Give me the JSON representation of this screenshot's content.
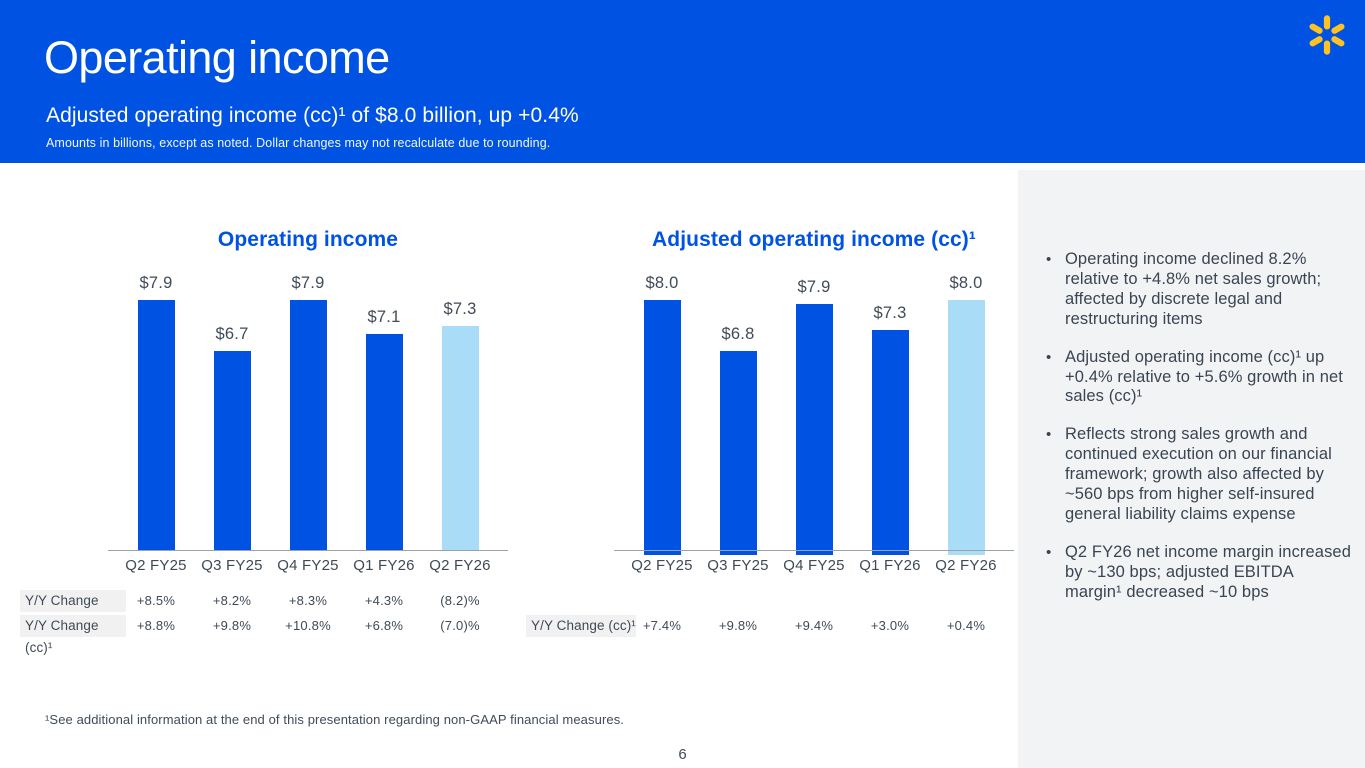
{
  "header": {
    "title": "Operating income",
    "subtitle": "Adjusted operating income (cc)¹ of $8.0 billion, up +0.4%",
    "note": "Amounts in billions, except as noted.  Dollar changes may not recalculate due to rounding.",
    "logo": "walmart-spark-icon"
  },
  "colors": {
    "brand_blue": "#0053E2",
    "light_blue": "#A9DDF7",
    "spark_yellow": "#FFC220",
    "text_dark": "#3A4553",
    "sidebar_bg": "#F2F3F4"
  },
  "chart_data": [
    {
      "type": "bar",
      "title": "Operating income",
      "categories": [
        "Q2 FY25",
        "Q3 FY25",
        "Q4 FY25",
        "Q1 FY26",
        "Q2 FY26"
      ],
      "values": [
        7.9,
        6.7,
        7.9,
        7.1,
        7.3
      ],
      "value_labels": [
        "$7.9",
        "$6.7",
        "$7.9",
        "$7.1",
        "$7.3"
      ],
      "bar_colors": [
        "#0053E2",
        "#0053E2",
        "#0053E2",
        "#0053E2",
        "#A9DDF7"
      ],
      "ylim": [
        2.0,
        8.5
      ],
      "grid": false,
      "legend": false,
      "table_rows": [
        {
          "label": "Y/Y Change",
          "values": [
            "+8.5%",
            "+8.2%",
            "+8.3%",
            "+4.3%",
            "(8.2)%"
          ]
        },
        {
          "label": "Y/Y Change (cc)¹",
          "values": [
            "+8.8%",
            "+9.8%",
            "+10.8%",
            "+6.8%",
            "(7.0)%"
          ]
        }
      ]
    },
    {
      "type": "bar",
      "title": "Adjusted operating income (cc)¹",
      "categories": [
        "Q2 FY25",
        "Q3 FY25",
        "Q4 FY25",
        "Q1 FY26",
        "Q2 FY26"
      ],
      "values": [
        8.0,
        6.8,
        7.9,
        7.3,
        8.0
      ],
      "value_labels": [
        "$8.0",
        "$6.8",
        "$7.9",
        "$7.3",
        "$8.0"
      ],
      "bar_colors": [
        "#0053E2",
        "#0053E2",
        "#0053E2",
        "#0053E2",
        "#A9DDF7"
      ],
      "ylim": [
        2.0,
        8.5
      ],
      "grid": false,
      "legend": false,
      "table_rows": [
        {
          "label": "Y/Y Change (cc)¹",
          "values": [
            "+7.4%",
            "+9.8%",
            "+9.4%",
            "+3.0%",
            "+0.4%"
          ]
        }
      ]
    }
  ],
  "sidebar": {
    "bullets": [
      "Operating income declined 8.2% relative to +4.8% net sales growth; affected by discrete legal and restructuring items",
      "Adjusted operating income (cc)¹ up +0.4% relative to +5.6% growth in net sales (cc)¹",
      "Reflects strong sales growth and continued execution on our financial framework; growth also affected by ~560 bps from higher self-insured general liability claims expense",
      "Q2 FY26 net income margin increased by ~130 bps; adjusted EBITDA margin¹ decreased ~10 bps"
    ],
    "bullet_marker": "•"
  },
  "footer": {
    "footnote": "¹See additional information at the end of this presentation regarding non-GAAP financial measures.",
    "page_number": "6"
  }
}
